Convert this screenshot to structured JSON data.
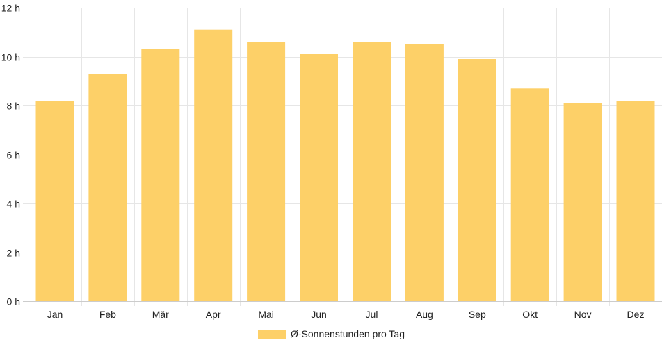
{
  "chart_data": {
    "type": "bar",
    "categories": [
      "Jan",
      "Feb",
      "Mär",
      "Apr",
      "Mai",
      "Jun",
      "Jul",
      "Aug",
      "Sep",
      "Okt",
      "Nov",
      "Dez"
    ],
    "series": [
      {
        "name": "Ø-Sonnenstunden pro Tag",
        "values": [
          8.2,
          9.3,
          10.3,
          11.1,
          10.6,
          10.1,
          10.6,
          10.5,
          9.9,
          8.7,
          8.1,
          8.2
        ],
        "color": "#FDD068"
      }
    ],
    "ylim": [
      0,
      12
    ],
    "yticks": [
      0,
      2,
      4,
      6,
      8,
      10,
      12
    ],
    "ytick_labels": [
      "0 h",
      "2 h",
      "4 h",
      "6 h",
      "8 h",
      "10 h",
      "12 h"
    ],
    "grid": true,
    "legend_position": "bottom",
    "title": "",
    "xlabel": "",
    "ylabel": ""
  }
}
